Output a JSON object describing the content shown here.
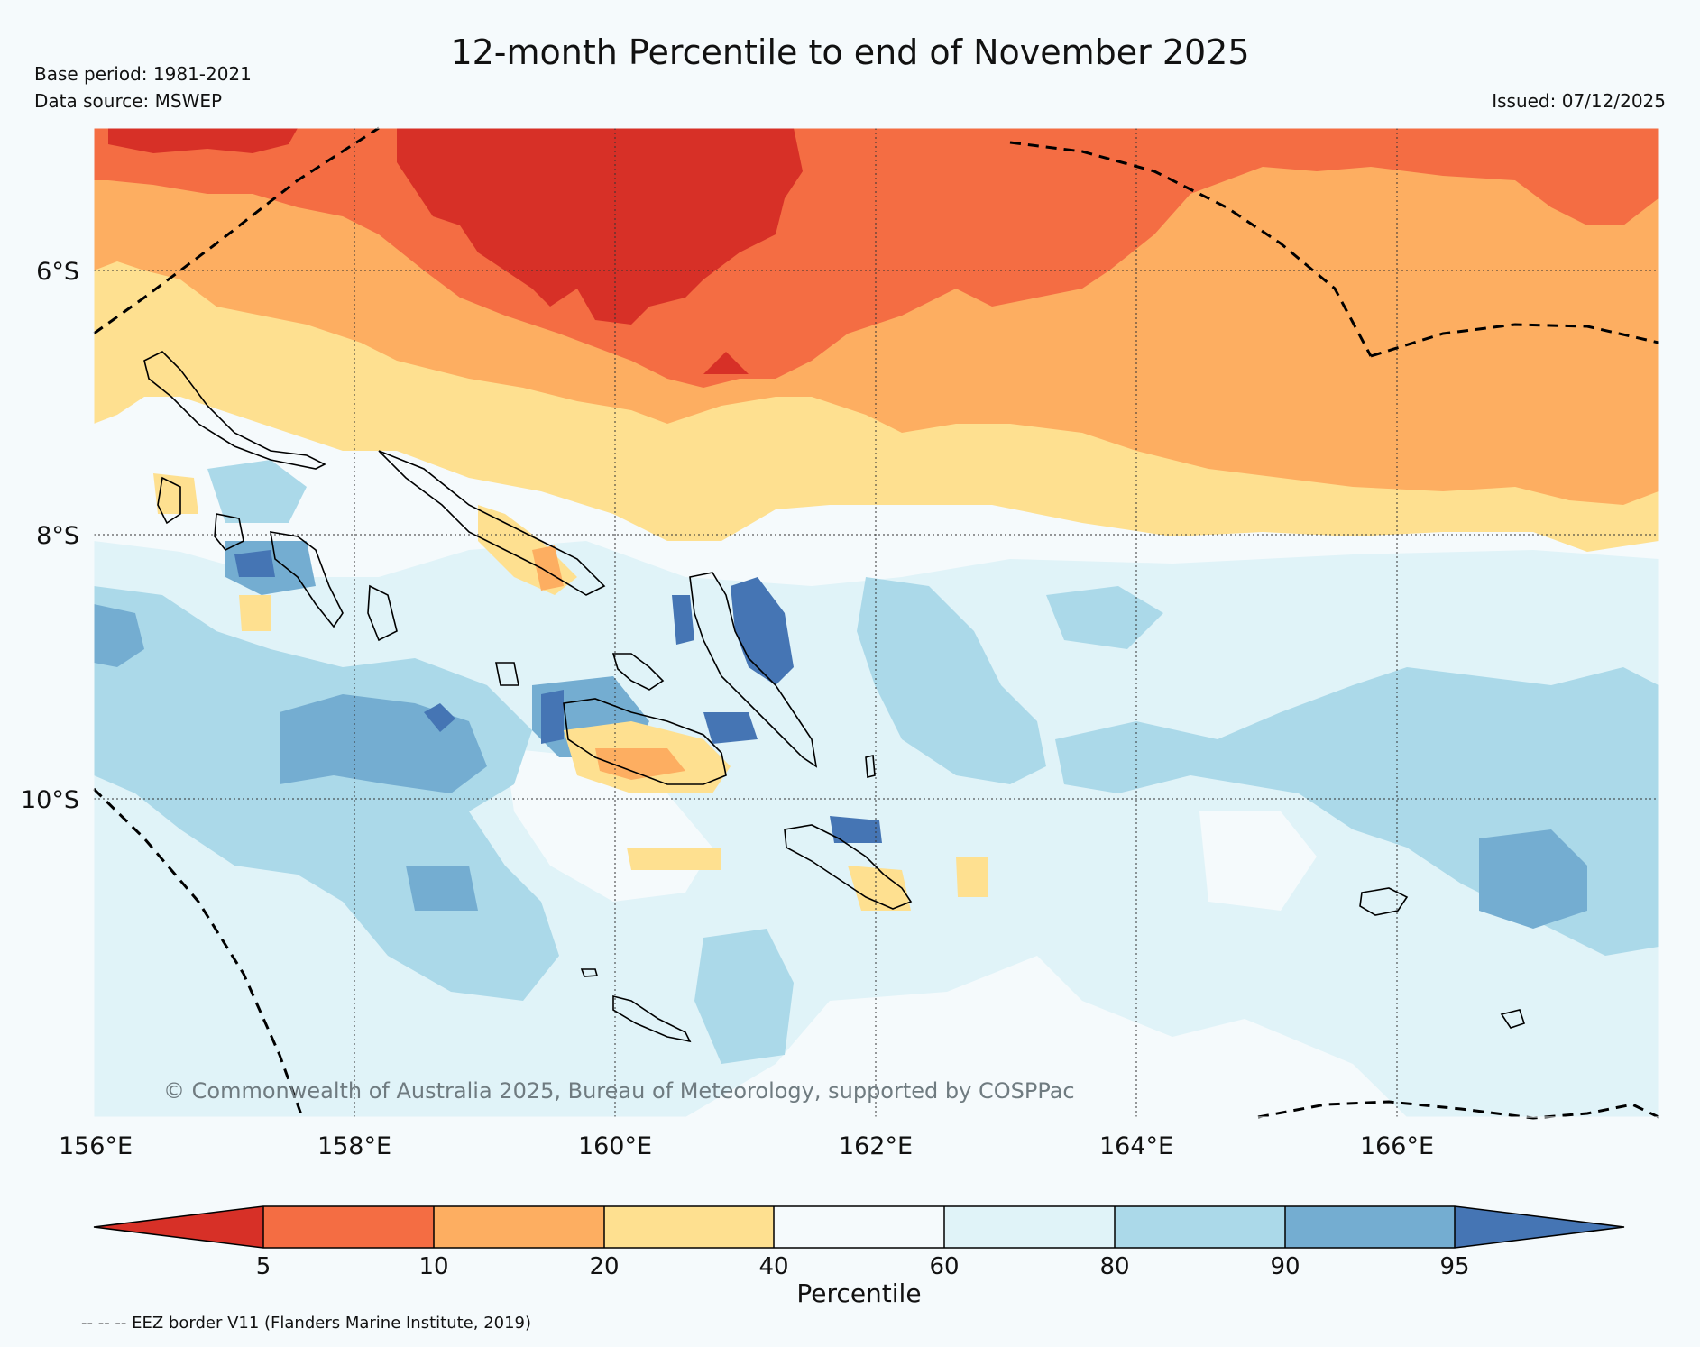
{
  "title": "12-month Percentile to end of November 2025",
  "base_period": "Base period: 1981-2021",
  "data_source": "Data source: MSWEP",
  "issued": "Issued: 07/12/2025",
  "copyright": "© Commonwealth of Australia 2025, Bureau of Meteorology, supported by COSPPac",
  "footnote": "-- -- -- EEZ border V11 (Flanders Marine Institute, 2019)",
  "map": {
    "lat_labels": [
      "6°S",
      "8°S",
      "10°S"
    ],
    "lon_labels": [
      "156°E",
      "158°E",
      "160°E",
      "162°E",
      "164°E",
      "166°E"
    ]
  },
  "colorbar": {
    "label": "Percentile",
    "ticks": [
      "5",
      "10",
      "20",
      "40",
      "60",
      "80",
      "90",
      "95"
    ],
    "colors": {
      "lt5": "#d73027",
      "p5_10": "#f46d43",
      "p10_20": "#fdae61",
      "p20_40": "#fee090",
      "p40_60": "#f5fafc",
      "p60_80": "#e0f3f8",
      "p80_90": "#abd9e9",
      "p90_95": "#74add1",
      "gt95": "#4575b4"
    }
  }
}
